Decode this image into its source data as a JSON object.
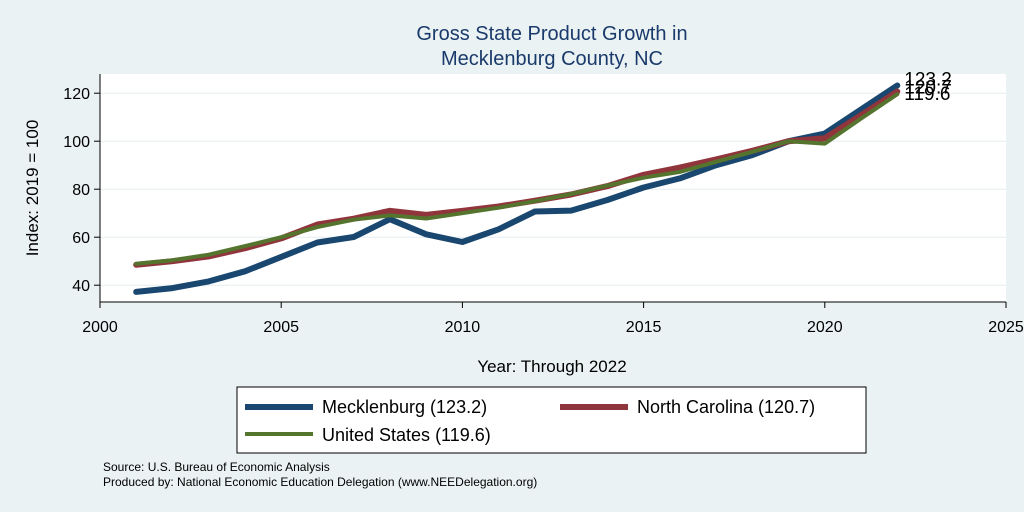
{
  "chart_data": {
    "type": "line",
    "title": [
      "Gross State Product Growth in",
      "Mecklenburg County, NC"
    ],
    "xlabel": "Year: Through 2022",
    "ylabel": "Index: 2019 = 100",
    "xlim": [
      2000,
      2025
    ],
    "ylim": [
      33,
      128
    ],
    "xticks": [
      "2000",
      "2005",
      "2010",
      "2015",
      "2020",
      "2025"
    ],
    "yticks": [
      "40",
      "60",
      "80",
      "100",
      "120"
    ],
    "grid": true,
    "legend_position": "bottom",
    "x": [
      2001,
      2002,
      2003,
      2004,
      2005,
      2006,
      2007,
      2008,
      2009,
      2010,
      2011,
      2012,
      2013,
      2014,
      2015,
      2016,
      2017,
      2018,
      2019,
      2020,
      2021,
      2022
    ],
    "series": [
      {
        "name": "Mecklenburg",
        "legend_label": "Mecklenburg  (123.2)",
        "end_label": "123.2",
        "color": "#1a476f",
        "values": [
          37.2,
          38.8,
          41.6,
          45.8,
          51.8,
          57.8,
          60.1,
          67.5,
          61.2,
          58.0,
          63.3,
          70.7,
          71.1,
          75.5,
          80.7,
          84.5,
          90.0,
          94.2,
          100.0,
          103.2,
          113.2,
          123.2
        ]
      },
      {
        "name": "North Carolina",
        "legend_label": "North Carolina (120.7)",
        "end_label": "120.7",
        "color": "#90353b",
        "values": [
          48.5,
          50.0,
          52.0,
          55.4,
          59.5,
          65.3,
          67.7,
          71.0,
          69.3,
          71.0,
          72.8,
          75.2,
          77.8,
          81.3,
          86.0,
          89.0,
          92.4,
          96.0,
          100.0,
          101.2,
          110.8,
          120.7
        ]
      },
      {
        "name": "United States",
        "legend_label": "United States (119.6)",
        "end_label": "119.6",
        "color": "#55752f",
        "values": [
          48.9,
          50.4,
          52.7,
          56.3,
          60.0,
          64.2,
          67.3,
          69.1,
          67.8,
          70.0,
          72.3,
          75.0,
          78.0,
          81.5,
          84.8,
          87.2,
          91.4,
          95.6,
          100.0,
          99.0,
          109.4,
          119.6
        ]
      }
    ]
  },
  "notes": [
    "Source: U.S. Bureau of Economic Analysis",
    "Produced by: National Economic Education Delegation (www.NEEDelegation.org)"
  ]
}
